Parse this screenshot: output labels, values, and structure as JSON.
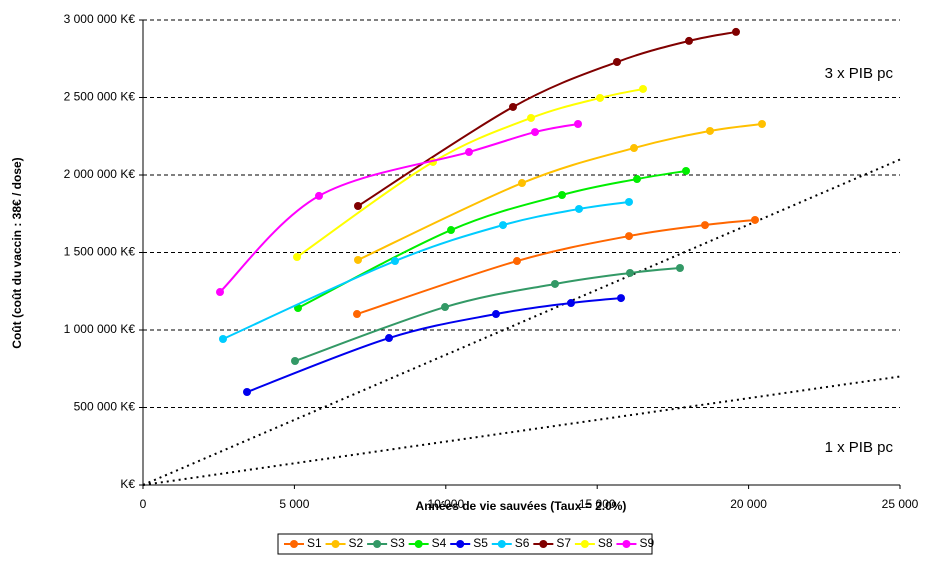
{
  "chart_data": {
    "type": "line",
    "x_label": "Années de vie sauvées (Taux = 2.0%)",
    "y_label": "Coût (coût du vaccin : 38€ / dose)",
    "xlim": [
      0,
      25000
    ],
    "xticks": [
      0,
      {
        "value": 5000,
        "label": "5 000"
      },
      {
        "value": 10000,
        "label": "10 000"
      },
      {
        "value": 15000,
        "label": "15 000"
      },
      {
        "value": 20000,
        "label": "20 000"
      },
      {
        "value": 25000,
        "label": "25 000"
      }
    ],
    "ylim": [
      0,
      3000000
    ],
    "yticks": [
      {
        "value": 0,
        "label": "K€"
      },
      {
        "value": 500000,
        "label": "500 000 K€"
      },
      {
        "value": 1000000,
        "label": "1 000 000 K€"
      },
      {
        "value": 1500000,
        "label": "1 500 000 K€"
      },
      {
        "value": 2000000,
        "label": "2 000 000 K€"
      },
      {
        "value": 2500000,
        "label": "2 500 000 K€"
      },
      {
        "value": 3000000,
        "label": "3 000 000 K€"
      }
    ],
    "grid": true,
    "legend": "bottom",
    "annotations": [
      "3 x PIB pc",
      "1 x PIB pc"
    ],
    "reference_lines": [
      {
        "x": [
          0,
          25000
        ],
        "y": [
          0,
          2100000
        ]
      },
      {
        "x": [
          0,
          25000
        ],
        "y": [
          0,
          700000
        ]
      }
    ],
    "series": [
      {
        "name": "S1",
        "color": "#ff6600",
        "x": [
          7067,
          12351,
          16050,
          18560,
          20211
        ],
        "values": [
          1103000,
          1445000,
          1606000,
          1677000,
          1710000
        ]
      },
      {
        "name": "S2",
        "color": "#ffc000",
        "x": [
          7100,
          12516,
          16215,
          18725,
          20442
        ],
        "values": [
          1452000,
          1948000,
          2174000,
          2284000,
          2329000
        ]
      },
      {
        "name": "S3",
        "color": "#339966",
        "x": [
          5020,
          9974,
          13606,
          16083,
          17734
        ],
        "values": [
          800000,
          1148000,
          1297000,
          1368000,
          1400000
        ]
      },
      {
        "name": "S4",
        "color": "#00ee00",
        "x": [
          5119,
          10172,
          13838,
          16315,
          17933
        ],
        "values": [
          1142000,
          1645000,
          1871000,
          1974000,
          2026000
        ]
      },
      {
        "name": "S5",
        "color": "#0000ee",
        "x": [
          3435,
          8124,
          11658,
          14135,
          15786
        ],
        "values": [
          600000,
          948000,
          1103000,
          1174000,
          1206000
        ]
      },
      {
        "name": "S6",
        "color": "#00ccff",
        "x": [
          2642,
          8322,
          11889,
          14399,
          16050
        ],
        "values": [
          942000,
          1445000,
          1677000,
          1781000,
          1826000
        ]
      },
      {
        "name": "S7",
        "color": "#800000",
        "x": [
          7100,
          12219,
          15654,
          18032,
          19584
        ],
        "values": [
          1800000,
          2439000,
          2729000,
          2865000,
          2923000
        ]
      },
      {
        "name": "S8",
        "color": "#ffff00",
        "x": [
          5086,
          9577,
          12814,
          15093,
          16513
        ],
        "values": [
          1471000,
          2084000,
          2368000,
          2497000,
          2555000
        ]
      },
      {
        "name": "S9",
        "color": "#ff00ff",
        "x": [
          2543,
          5812,
          10766,
          12946,
          14366
        ],
        "values": [
          1245000,
          1865000,
          2148000,
          2277000,
          2329000
        ]
      }
    ]
  }
}
